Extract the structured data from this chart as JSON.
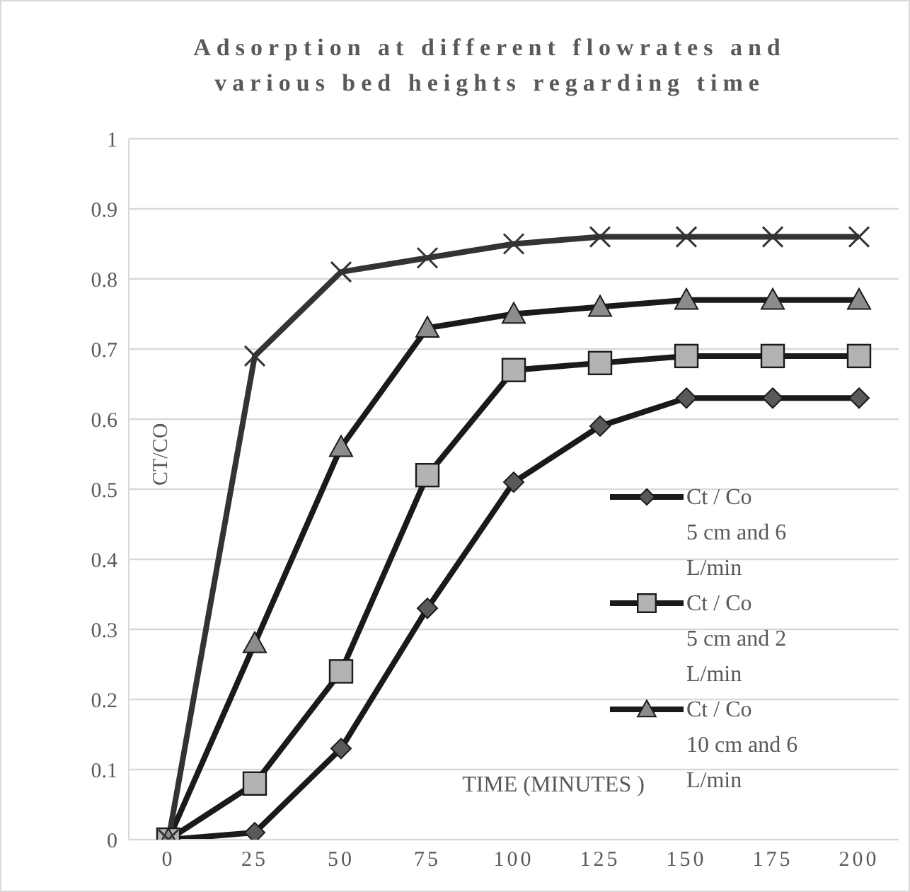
{
  "chart_data": {
    "type": "line",
    "title": "Adsorption at different flowrates and various bed heights regarding time",
    "xlabel": "TIME (MINUTES )",
    "ylabel": "CT/CO",
    "categories": [
      "0",
      "25",
      "50",
      "75",
      "100",
      "125",
      "150",
      "175",
      "200"
    ],
    "series": [
      {
        "name": "Ct / Co\n5 cm and 6 L/min",
        "color": "#595959",
        "marker": "diamond",
        "values": [
          0,
          0.01,
          0.13,
          0.33,
          0.51,
          0.59,
          0.63,
          0.63,
          0.63
        ]
      },
      {
        "name": "Ct / Co\n5 cm and 2 L/min",
        "color": "#b3b3b3",
        "marker": "square",
        "values": [
          0,
          0.08,
          0.24,
          0.52,
          0.67,
          0.68,
          0.69,
          0.69,
          0.69
        ]
      },
      {
        "name": "Ct / Co\n10 cm and 6 L/min",
        "color": "#8c8c8c",
        "marker": "triangle",
        "values": [
          0,
          0.28,
          0.56,
          0.73,
          0.75,
          0.76,
          0.77,
          0.77,
          0.77
        ]
      },
      {
        "color": "#333333",
        "marker": "cross",
        "values": [
          0,
          0.69,
          0.81,
          0.83,
          0.85,
          0.86,
          0.86,
          0.86,
          0.86
        ]
      }
    ],
    "ylim": [
      0,
      1
    ],
    "yticks": [
      0,
      0.1,
      0.2,
      0.3,
      0.4,
      0.5,
      0.6,
      0.7,
      0.8,
      0.9,
      1
    ],
    "grid": "y",
    "legend": "right",
    "line_style": "solid"
  }
}
